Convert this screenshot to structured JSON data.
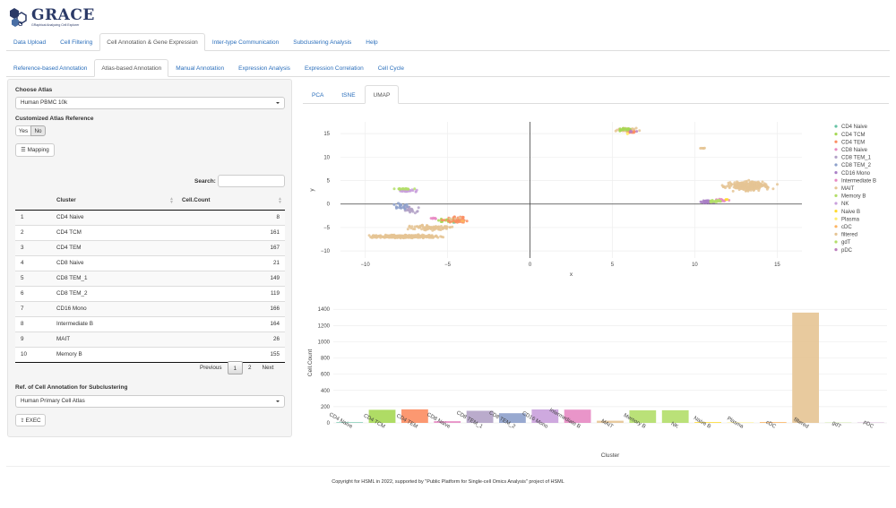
{
  "header": {
    "logo_title": "GRACE",
    "logo_subtitle": "GRaphical Analyzing Cell Explorer"
  },
  "main_tabs": [
    {
      "label": "Data Upload"
    },
    {
      "label": "Cell Filtering"
    },
    {
      "label": "Cell Annotation & Gene Expression",
      "active": true
    },
    {
      "label": "Inter-type Communication"
    },
    {
      "label": "Subclustering Analysis"
    },
    {
      "label": "Help"
    }
  ],
  "sub_tabs": [
    {
      "label": "Reference-based Annotation"
    },
    {
      "label": "Atlas-based Annotation",
      "active": true
    },
    {
      "label": "Manual Annotation"
    },
    {
      "label": "Expression Analysis"
    },
    {
      "label": "Expression Correlation"
    },
    {
      "label": "Cell Cycle"
    }
  ],
  "sidebar": {
    "choose_atlas_label": "Choose Atlas",
    "atlas_value": "Human PBMC 10k",
    "custom_ref_label": "Customized Atlas Reference",
    "yes_label": "Yes",
    "no_label": "No",
    "no_selected": true,
    "mapping_label": "Mapping",
    "search_label": "Search:",
    "search_value": "",
    "table": {
      "headers": [
        "",
        "Cluster",
        "Cell.Count"
      ],
      "rows": [
        [
          "1",
          "CD4 Naive",
          "8"
        ],
        [
          "2",
          "CD4 TCM",
          "161"
        ],
        [
          "3",
          "CD4 TEM",
          "167"
        ],
        [
          "4",
          "CD8 Naive",
          "21"
        ],
        [
          "5",
          "CD8 TEM_1",
          "149"
        ],
        [
          "6",
          "CD8 TEM_2",
          "119"
        ],
        [
          "7",
          "CD16 Mono",
          "166"
        ],
        [
          "8",
          "Intermediate B",
          "164"
        ],
        [
          "9",
          "MAIT",
          "26"
        ],
        [
          "10",
          "Memory B",
          "155"
        ]
      ]
    },
    "pager": {
      "previous": "Previous",
      "pages": [
        "1",
        "2"
      ],
      "current": "1",
      "next": "Next"
    },
    "ref_label": "Ref. of Cell Annotation for Subclustering",
    "ref_value": "Human Primary Cell Atlas",
    "exec_label": "EXEC"
  },
  "plot_tabs": [
    {
      "label": "PCA"
    },
    {
      "label": "tSNE"
    },
    {
      "label": "UMAP",
      "active": true
    }
  ],
  "chart_data": [
    {
      "type": "scatter",
      "xlabel": "x",
      "ylabel": "y",
      "xlim": [
        -11.5,
        16.5
      ],
      "ylim": [
        -11.5,
        17.5
      ],
      "xticks": [
        -10,
        -5,
        0,
        5,
        10,
        15
      ],
      "yticks": [
        -10,
        -5,
        0,
        5,
        10,
        15
      ],
      "xtick_labels": [
        "−10",
        "−5",
        "0",
        "5",
        "10",
        "15"
      ],
      "ytick_labels": [
        "−10",
        "−5",
        "0",
        "5",
        "10",
        "15"
      ],
      "legend_position": "right",
      "series": [
        {
          "name": "CD4 Naive",
          "color": "#66c2a5",
          "clusters": [
            [
              -4.5,
              -3.8,
              0.8,
              0.5,
              6
            ]
          ]
        },
        {
          "name": "CD4 TCM",
          "color": "#a6d854",
          "clusters": [
            [
              -4.8,
              -3.5,
              1.2,
              0.8,
              25
            ],
            [
              5.8,
              15.9,
              0.8,
              0.5,
              20
            ]
          ]
        },
        {
          "name": "CD4 TEM",
          "color": "#fc8d62",
          "clusters": [
            [
              -4.5,
              -3.4,
              1.2,
              0.8,
              35
            ],
            [
              6.2,
              15.3,
              0.5,
              0.4,
              10
            ]
          ]
        },
        {
          "name": "CD8 Naive",
          "color": "#e78ac3",
          "clusters": [
            [
              -5.8,
              -3.0,
              0.4,
              0.3,
              6
            ]
          ]
        },
        {
          "name": "CD8 TEM_1",
          "color": "#b3a2c7",
          "clusters": [
            [
              -7.2,
              -1.2,
              0.8,
              1.0,
              25
            ]
          ]
        },
        {
          "name": "CD8 TEM_2",
          "color": "#8da0cb",
          "clusters": [
            [
              -7.8,
              -0.5,
              0.6,
              1.0,
              18
            ]
          ]
        },
        {
          "name": "CD16 Mono",
          "color": "#a97fc6",
          "clusters": [
            [
              10.8,
              0.5,
              0.6,
              0.4,
              30
            ]
          ]
        },
        {
          "name": "Intermediate B",
          "color": "#e78ac3",
          "clusters": [
            [
              11.6,
              0.8,
              0.6,
              0.4,
              28
            ]
          ]
        },
        {
          "name": "MAIT",
          "color": "#e5c494",
          "clusters": [
            [
              -4.5,
              -3.2,
              0.5,
              0.4,
              4
            ]
          ]
        },
        {
          "name": "Memory B",
          "color": "#b3de69",
          "clusters": [
            [
              11.2,
              0.6,
              0.5,
              0.4,
              26
            ]
          ]
        },
        {
          "name": "NK",
          "color": "#c9a0dc",
          "clusters": [
            [
              -7.5,
              2.8,
              0.8,
              0.3,
              26
            ]
          ]
        },
        {
          "name": "Naive B",
          "color": "#ffd92f",
          "clusters": [
            [
              12.0,
              1.0,
              0.3,
              0.2,
              3
            ]
          ]
        },
        {
          "name": "Plasma",
          "color": "#ffed6f",
          "clusters": [
            [
              6.0,
              15.0,
              0.3,
              0.2,
              2
            ]
          ]
        },
        {
          "name": "cDC",
          "color": "#fdb462",
          "clusters": [
            [
              -4.0,
              -3.6,
              0.3,
              0.2,
              3
            ]
          ]
        },
        {
          "name": "filtered",
          "color": "#e5c494",
          "clusters": [
            [
              -7.5,
              -6.9,
              2.8,
              0.45,
              300
            ],
            [
              13.3,
              3.8,
              1.8,
              1.4,
              240
            ],
            [
              5.9,
              15.8,
              0.9,
              0.5,
              40
            ],
            [
              -6.0,
              -5.0,
              1.8,
              0.8,
              90
            ],
            [
              10.5,
              11.9,
              0.3,
              0.2,
              6
            ]
          ]
        },
        {
          "name": "gdT",
          "color": "#b3de69",
          "clusters": [
            [
              -7.7,
              3.2,
              0.9,
              0.2,
              20
            ]
          ]
        },
        {
          "name": "pDC",
          "color": "#bc80bd",
          "clusters": [
            [
              6.2,
              15.6,
              0.4,
              0.3,
              4
            ]
          ]
        }
      ]
    },
    {
      "type": "bar",
      "xlabel": "Cluster",
      "ylabel": "Cell.Count",
      "ylim": [
        0,
        1480
      ],
      "yticks": [
        0,
        200,
        400,
        600,
        800,
        1000,
        1200,
        1400
      ],
      "categories": [
        "CD4 Naive",
        "CD4 TCM",
        "CD4 TEM",
        "CD8 Naive",
        "CD8 TEM_1",
        "CD8 TEM_2",
        "CD16 Mono",
        "Intermediate B",
        "MAIT",
        "Memory B",
        "NK",
        "Naive B",
        "Plasma",
        "cDC",
        "filtered",
        "gdT",
        "pDC"
      ],
      "values": [
        8,
        161,
        167,
        21,
        149,
        119,
        166,
        164,
        26,
        155,
        156,
        10,
        5,
        10,
        1360,
        3,
        3
      ],
      "colors": [
        "#66c2a5",
        "#a6d854",
        "#fc8d62",
        "#e78ac3",
        "#b3a2c7",
        "#8da0cb",
        "#c9a0dc",
        "#e78ac3",
        "#e5c494",
        "#b3de69",
        "#b3de69",
        "#ffd92f",
        "#ffed6f",
        "#fdb462",
        "#e5c494",
        "#b3de69",
        "#bc80bd"
      ]
    }
  ],
  "footer": {
    "text": "Copyright for HSML in 2022, supported by \"Public Platform for Single-cell Omics Analysis\" project of HSML"
  }
}
